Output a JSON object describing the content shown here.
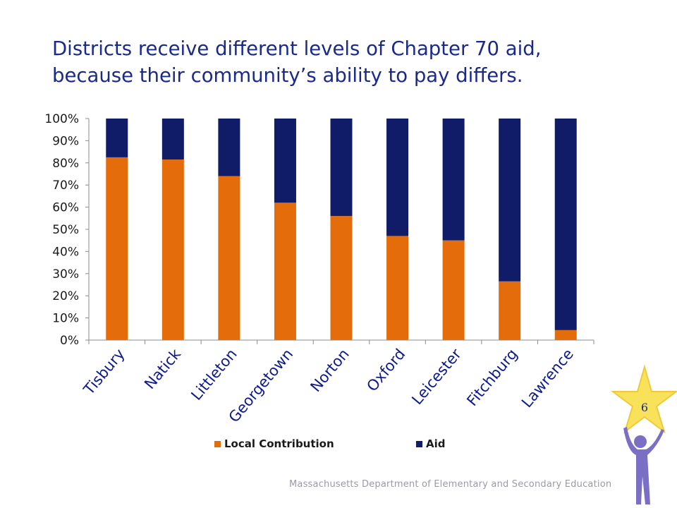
{
  "slide": {
    "title_line1": "Districts receive different levels of Chapter 70 aid,",
    "title_line2": "because their community’s ability to pay differs.",
    "footer": "Massachusetts Department of Elementary and Secondary Education",
    "page_number": "6"
  },
  "colors": {
    "local": "#e46c0a",
    "aid": "#101c68",
    "title": "#1a2a8a",
    "star": "#f7e25a",
    "figure": "#7a6fc4"
  },
  "chart_data": {
    "type": "bar",
    "stacked": true,
    "normalized": true,
    "categories": [
      "Tisbury",
      "Natick",
      "Littleton",
      "Georgetown",
      "Norton",
      "Oxford",
      "Leicester",
      "Fitchburg",
      "Lawrence"
    ],
    "series": [
      {
        "name": "Local Contribution",
        "values": [
          82.5,
          81.5,
          74,
          62,
          56,
          47,
          45,
          26.5,
          4.5
        ]
      },
      {
        "name": "Aid",
        "values": [
          17.5,
          18.5,
          26,
          38,
          44,
          53,
          55,
          73.5,
          95.5
        ]
      }
    ],
    "yticks": [
      "0%",
      "10%",
      "20%",
      "30%",
      "40%",
      "50%",
      "60%",
      "70%",
      "80%",
      "90%",
      "100%"
    ],
    "ylim": [
      0,
      100
    ],
    "grid": false,
    "legend_position": "bottom"
  }
}
